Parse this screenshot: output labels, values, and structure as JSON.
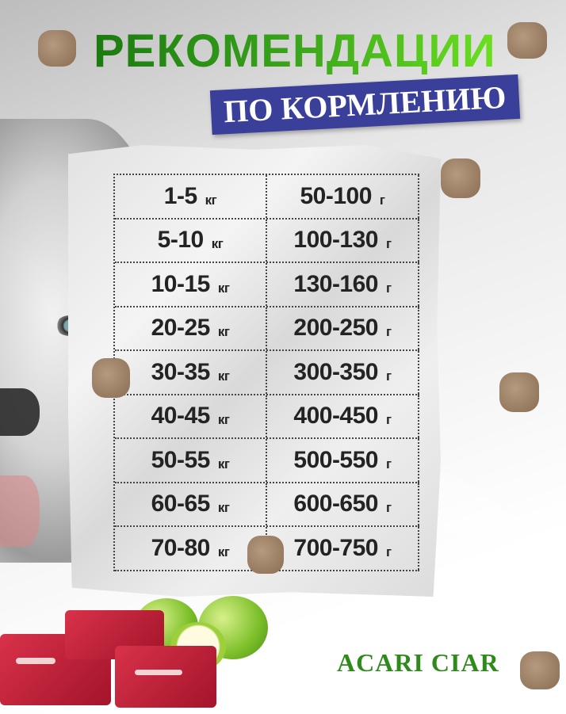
{
  "header": {
    "title": "РЕКОМЕНДАЦИИ",
    "subtitle": "ПО КОРМЛЕНИЮ"
  },
  "colors": {
    "title_green": "#3aa51b",
    "banner_blue": "#3a3f9a",
    "brand_green": "#2f8a1c",
    "text_dark": "#232323"
  },
  "feeding_table": {
    "weight_unit": "кг",
    "portion_unit": "г",
    "rows": [
      {
        "weight": "1-5",
        "portion": "50-100"
      },
      {
        "weight": "5-10",
        "portion": "100-130"
      },
      {
        "weight": "10-15",
        "portion": "130-160"
      },
      {
        "weight": "20-25",
        "portion": "200-250"
      },
      {
        "weight": "30-35",
        "portion": "300-350"
      },
      {
        "weight": "40-45",
        "portion": "400-450"
      },
      {
        "weight": "50-55",
        "portion": "500-550"
      },
      {
        "weight": "60-65",
        "portion": "600-650"
      },
      {
        "weight": "70-80",
        "portion": "700-750"
      }
    ]
  },
  "brand": {
    "name": "ACARI CIAR"
  }
}
